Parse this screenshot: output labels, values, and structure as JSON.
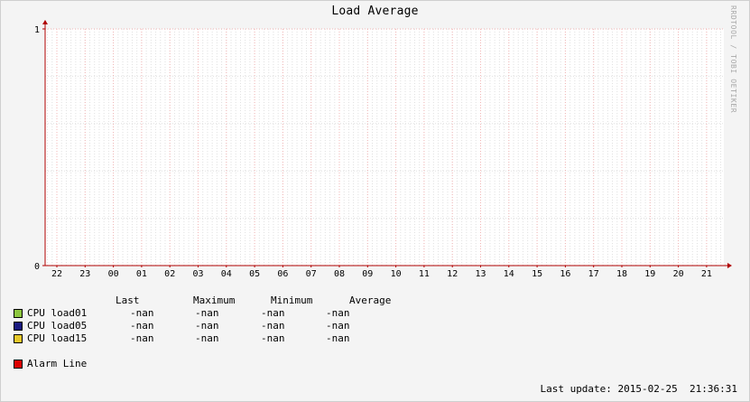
{
  "chart_data": {
    "type": "line",
    "title": "Load Average",
    "watermark": "RRDTOOL / TOBI OETIKER",
    "ylim": [
      0,
      1
    ],
    "y_ticks": [
      "1",
      "0"
    ],
    "x_ticks": [
      "22",
      "23",
      "00",
      "01",
      "02",
      "03",
      "04",
      "05",
      "06",
      "07",
      "08",
      "09",
      "10",
      "11",
      "12",
      "13",
      "14",
      "15",
      "16",
      "17",
      "18",
      "19",
      "20",
      "21"
    ],
    "grid": true,
    "legend_columns": [
      "Last",
      "Maximum",
      "Minimum",
      "Average"
    ],
    "series": [
      {
        "name": "CPU load01",
        "color": "#8dc63f",
        "values": [],
        "last": "-nan",
        "max": "-nan",
        "min": "-nan",
        "avg": "-nan"
      },
      {
        "name": "CPU load05",
        "color": "#1a1a80",
        "values": [],
        "last": "-nan",
        "max": "-nan",
        "min": "-nan",
        "avg": "-nan"
      },
      {
        "name": "CPU load15",
        "color": "#e6c82a",
        "values": [],
        "last": "-nan",
        "max": "-nan",
        "min": "-nan",
        "avg": "-nan"
      }
    ],
    "alarm_line": {
      "name": "Alarm Line",
      "color": "#dd0000"
    },
    "last_update": "Last update: 2015-02-25  21:36:31"
  }
}
